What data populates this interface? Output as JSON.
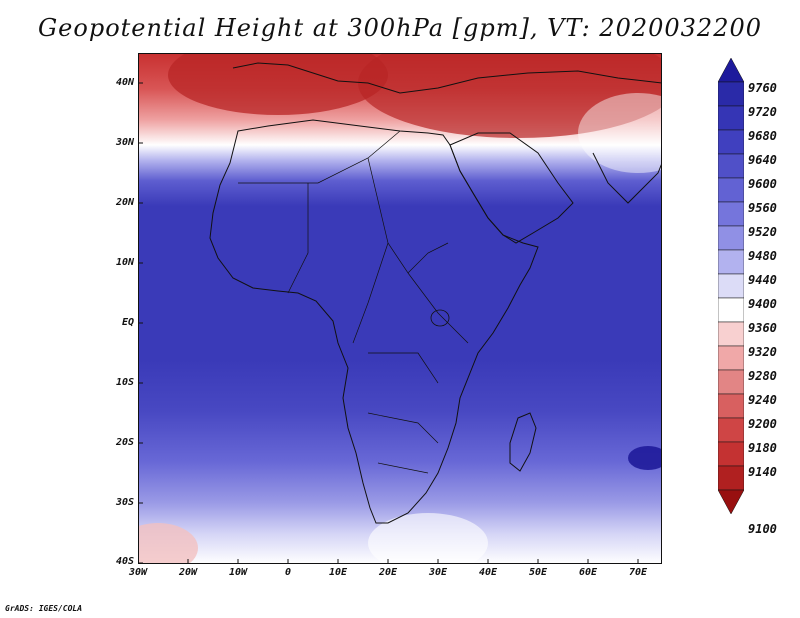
{
  "title": "Geopotential Height at 300hPa [gpm], VT: 2020032200",
  "credit": "GrADS: IGES/COLA",
  "lat_ticks": [
    "40N",
    "30N",
    "20N",
    "10N",
    "EQ",
    "10S",
    "20S",
    "30S",
    "40S"
  ],
  "lon_ticks": [
    "30W",
    "20W",
    "10W",
    "0",
    "10E",
    "20E",
    "30E",
    "40E",
    "50E",
    "60E",
    "70E"
  ],
  "colorbar": {
    "levels": [
      "9760",
      "9720",
      "9680",
      "9640",
      "9600",
      "9560",
      "9520",
      "9480",
      "9440",
      "9400",
      "9360",
      "9320",
      "9280",
      "9240",
      "9200",
      "9180",
      "9140",
      "9100"
    ],
    "colors": [
      "#1e1a9c",
      "#2a2aa8",
      "#3535b5",
      "#4040bf",
      "#5050c8",
      "#6262d3",
      "#7575dc",
      "#9090e5",
      "#b2b2ef",
      "#dcdcf7",
      "#ffffff",
      "#f8d0d0",
      "#f0a8a8",
      "#e28585",
      "#d86060",
      "#cf4545",
      "#c43232",
      "#b02020",
      "#981010"
    ]
  }
}
